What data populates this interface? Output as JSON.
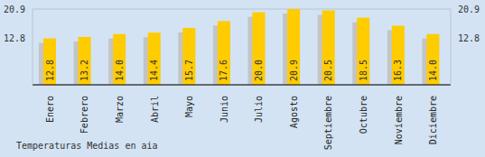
{
  "chart_data": {
    "type": "bar",
    "title": "Temperaturas Medias en aia",
    "categories": [
      "Enero",
      "Febrero",
      "Marzo",
      "Abril",
      "Mayo",
      "Junio",
      "Julio",
      "Agosto",
      "Septiembre",
      "Octubre",
      "Noviembre",
      "Diciembre"
    ],
    "values": [
      12.8,
      13.2,
      14.0,
      14.4,
      15.7,
      17.6,
      20.0,
      20.9,
      20.5,
      18.5,
      16.3,
      14.0
    ],
    "value_labels": [
      "12.8",
      "13.2",
      "14.0",
      "14.4",
      "15.7",
      "17.6",
      "20.0",
      "20.9",
      "20.5",
      "18.5",
      "16.3",
      "14.0"
    ],
    "color": "#ffcc00",
    "ylim": [
      0,
      20.9
    ],
    "yticks": [
      12.8,
      20.9
    ],
    "grid": true,
    "data_labels": true
  }
}
